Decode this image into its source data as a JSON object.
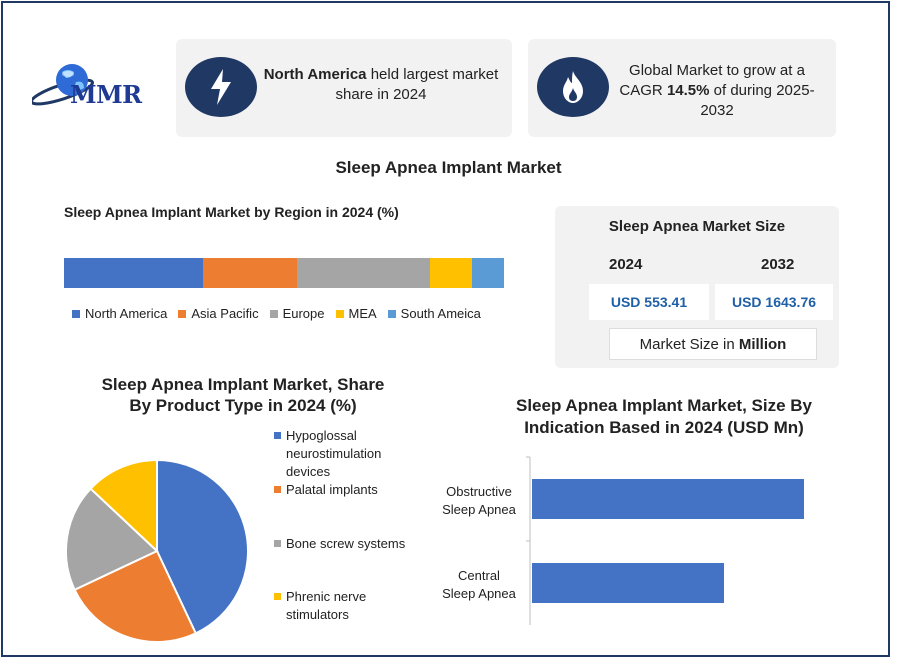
{
  "brand": {
    "logo_text": "MMR"
  },
  "cards": [
    {
      "icon": "lightning-icon",
      "bold": "North America",
      "text1": " held largest market",
      "text2": "share in 2024"
    },
    {
      "icon": "flame-icon",
      "line1": "Global Market to grow at a",
      "line2_pre": "CAGR ",
      "line2_bold": "14.5%",
      "line2_post": " of during 2025-",
      "line3": "2032"
    }
  ],
  "main_title": "Sleep Apnea Implant Market",
  "colors": {
    "navy": "#1f3864",
    "blue": "#4472c4",
    "orange": "#ed7d31",
    "gray": "#a5a5a5",
    "yellow": "#ffc000",
    "lightblue": "#5b9bd5",
    "value_text": "#1f5fa8"
  },
  "market_size": {
    "title": "Sleep Apnea Market Size",
    "year1": "2024",
    "year2": "2032",
    "value1": "USD 553.41",
    "value2": "USD 1643.76",
    "note_pre": "Market Size in ",
    "note_bold": "Million"
  },
  "chart_data": [
    {
      "type": "bar",
      "title": "Sleep Apnea Implant Market by Region in 2024 (%)",
      "orientation": "stacked-horizontal",
      "series": [
        {
          "name": "North America",
          "value": 31.6,
          "color": "#4472c4"
        },
        {
          "name": "Asia Pacific",
          "value": 21.4,
          "color": "#ed7d31"
        },
        {
          "name": "Europe",
          "value": 30.2,
          "color": "#a5a5a5"
        },
        {
          "name": "MEA",
          "value": 9.5,
          "color": "#ffc000"
        },
        {
          "name": "South Ameica",
          "value": 7.3,
          "color": "#5b9bd5"
        }
      ],
      "legend": "bottom"
    },
    {
      "type": "pie",
      "title_line1": "Sleep Apnea Implant Market, Share",
      "title_line2": "By Product Type in 2024 (%)",
      "slices": [
        {
          "name_lines": [
            "Hypoglossal",
            "neurostimulation",
            "devices"
          ],
          "value": 43,
          "color": "#4472c4"
        },
        {
          "name_lines": [
            "Palatal implants"
          ],
          "value": 25,
          "color": "#ed7d31"
        },
        {
          "name_lines": [
            "Bone screw systems"
          ],
          "value": 19,
          "color": "#a5a5a5"
        },
        {
          "name_lines": [
            "Phrenic nerve",
            "stimulators"
          ],
          "value": 13,
          "color": "#ffc000"
        }
      ],
      "legend": "right"
    },
    {
      "type": "bar",
      "orientation": "horizontal",
      "title_line1": "Sleep Apnea Implant Market, Size By",
      "title_line2": "Indication Based in 2024 (USD Mn)",
      "categories": [
        [
          "Obstructive",
          "Sleep Apnea"
        ],
        [
          "Central",
          "Sleep Apnea"
        ]
      ],
      "values": [
        340,
        240
      ],
      "xlim": [
        0,
        350
      ],
      "color": "#4472c4"
    }
  ]
}
